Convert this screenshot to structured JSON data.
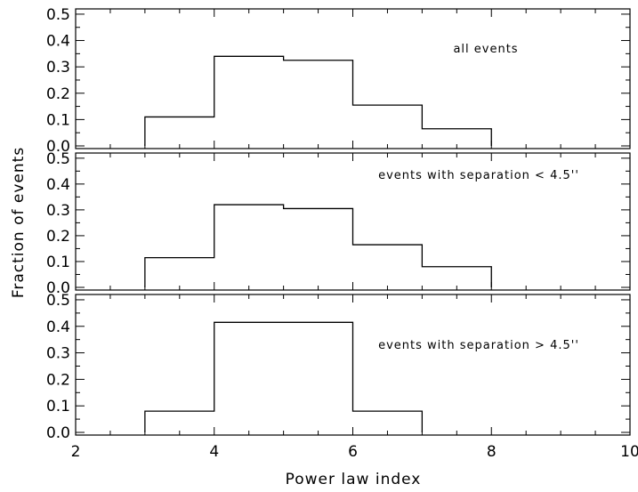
{
  "chart_data": {
    "type": "histogram",
    "xlabel": "Power law index",
    "ylabel": "Fraction of events",
    "xlim": [
      2,
      10
    ],
    "ylim": [
      0,
      0.52
    ],
    "x_ticks": [
      "2",
      "4",
      "6",
      "8",
      "10"
    ],
    "y_ticks": [
      "0.0",
      "0.1",
      "0.2",
      "0.3",
      "0.4",
      "0.5"
    ],
    "shared_x_axis": true,
    "panels": [
      {
        "annotation": "all events",
        "bin_edges": [
          3,
          4,
          5,
          6,
          7,
          8
        ],
        "values": [
          0.11,
          0.34,
          0.325,
          0.155,
          0.065
        ]
      },
      {
        "annotation": "events with separation < 4.5''",
        "bin_edges": [
          3,
          4,
          5,
          6,
          7,
          8
        ],
        "values": [
          0.115,
          0.32,
          0.305,
          0.165,
          0.08
        ]
      },
      {
        "annotation": "events with separation > 4.5''",
        "bin_edges": [
          3,
          4,
          6,
          7
        ],
        "values": [
          0.08,
          0.415,
          0.08
        ]
      }
    ]
  }
}
